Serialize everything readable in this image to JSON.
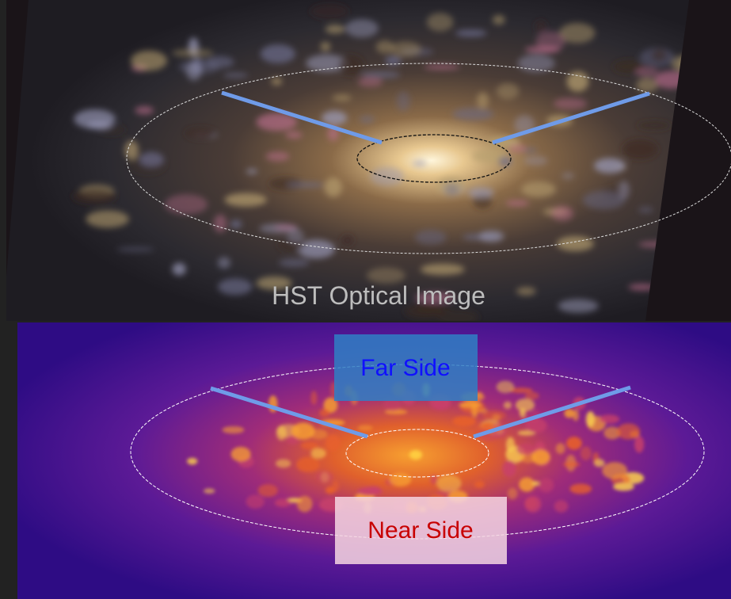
{
  "top_panel": {
    "caption": "HST Optical Image"
  },
  "bottom_panel": {
    "labels": {
      "far_side": "Far Side",
      "near_side": "Near Side"
    }
  }
}
